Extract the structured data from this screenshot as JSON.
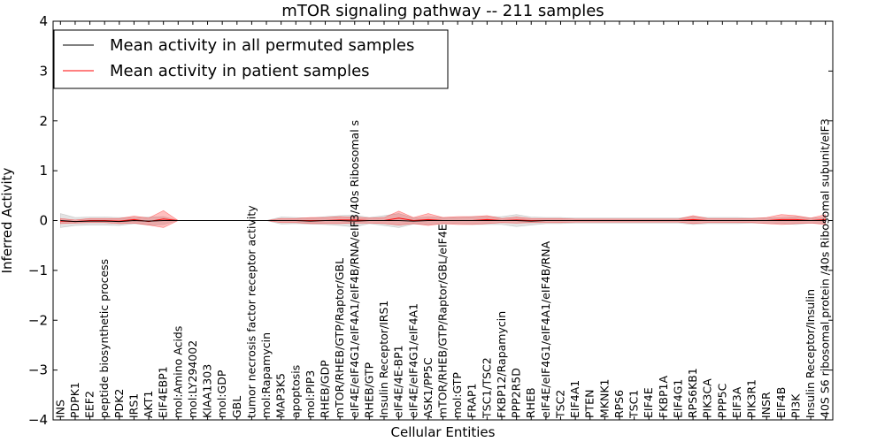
{
  "chart_data": {
    "type": "line",
    "title": "mTOR signaling pathway -- 211 samples",
    "xlabel": "Cellular Entities",
    "ylabel": "Inferred Activity",
    "ylim": [
      -4,
      4
    ],
    "yticks": [
      -4,
      -3,
      -2,
      -1,
      0,
      1,
      2,
      3,
      4
    ],
    "ytick_labels": [
      "−4",
      "−3",
      "−2",
      "−1",
      "0",
      "1",
      "2",
      "3",
      "4"
    ],
    "grid": false,
    "legend_position": "top-left",
    "categories": [
      "INS",
      "PDPK1",
      "EEF2",
      "peptide biosynthetic process",
      "PDK2",
      "IRS1",
      "AKT1",
      "EIF4EBP1",
      "mol:Amino Acids",
      "mol:LY294002",
      "KIAA1303",
      "mol:GDP",
      "GBL",
      "tumor necrosis factor receptor activity",
      "mol:Rapamycin",
      "MAP3K5",
      "apoptosis",
      "mol:PIP3",
      "RHEB/GDP",
      "mTOR/RHEB/GTP/Raptor/GBL",
      "eIF4E/eIF4G1/eIF4A1/eIF4B/RNA/eIF3/40s Ribosomal s",
      "RHEB/GTP",
      "Insulin Receptor/IRS1",
      "eIF4E/4E-BP1",
      "eIF4E/eIF4G1/eIF4A1",
      "ASK1/PP5C",
      "mTOR/RHEB/GTP/Raptor/GBL/eIF4E",
      "mol:GTP",
      "FRAP1",
      "TSC1/TSC2",
      "FKBP12/Rapamycin",
      "PPP2R5D",
      "RHEB",
      "eIF4E/eIF4G1/eIF4A1/eIF4B/RNA",
      "TSC2",
      "EIF4A1",
      "PTEN",
      "MKNK1",
      "RPS6",
      "TSC1",
      "EIF4E",
      "FKBP1A",
      "EIF4G1",
      "RPS6KB1",
      "PIK3CA",
      "PPP5C",
      "EIF3A",
      "PIK3R1",
      "INSR",
      "EIF4B",
      "PI3K",
      "Insulin Receptor/Insulin",
      "40S S6 ribosomal protein /40s Ribosomal subunit/eIF3"
    ],
    "series": [
      {
        "name": "Mean activity in all permuted samples",
        "color": "#000000",
        "values": [
          0.0,
          -0.02,
          -0.01,
          -0.01,
          -0.02,
          0.0,
          -0.01,
          0.0,
          0.0,
          0.0,
          0.0,
          0.0,
          0.0,
          0.0,
          0.0,
          0.0,
          0.0,
          -0.01,
          0.0,
          0.0,
          -0.01,
          0.0,
          0.0,
          0.0,
          -0.01,
          0.0,
          0.0,
          0.0,
          0.0,
          0.0,
          0.0,
          0.0,
          -0.01,
          0.0,
          0.0,
          0.0,
          0.0,
          0.0,
          0.0,
          0.0,
          0.0,
          0.0,
          0.0,
          0.0,
          0.0,
          0.0,
          0.0,
          0.0,
          0.0,
          0.0,
          0.0,
          0.0,
          0.0
        ],
        "band": [
          0.14,
          0.08,
          0.08,
          0.08,
          0.08,
          0.06,
          0.08,
          0.08,
          0.0,
          0.0,
          0.0,
          0.0,
          0.0,
          0.0,
          0.0,
          0.07,
          0.06,
          0.06,
          0.08,
          0.1,
          0.12,
          0.06,
          0.1,
          0.14,
          0.06,
          0.08,
          0.06,
          0.06,
          0.08,
          0.08,
          0.08,
          0.12,
          0.08,
          0.06,
          0.06,
          0.05,
          0.05,
          0.05,
          0.05,
          0.05,
          0.05,
          0.05,
          0.05,
          0.08,
          0.06,
          0.06,
          0.06,
          0.05,
          0.05,
          0.06,
          0.08,
          0.05,
          0.06
        ]
      },
      {
        "name": "Mean activity in patient samples",
        "color": "#ff0000",
        "values": [
          -0.01,
          -0.02,
          0.0,
          0.0,
          -0.01,
          0.02,
          -0.02,
          0.03,
          0.0,
          0.0,
          0.0,
          0.0,
          0.0,
          0.0,
          0.0,
          0.0,
          0.0,
          0.0,
          0.0,
          0.01,
          0.01,
          0.0,
          0.0,
          0.05,
          0.0,
          0.02,
          0.0,
          0.0,
          0.0,
          0.02,
          0.0,
          0.01,
          0.0,
          0.0,
          0.0,
          0.0,
          0.0,
          0.0,
          0.0,
          0.0,
          0.0,
          0.0,
          0.0,
          0.02,
          0.0,
          0.0,
          0.0,
          0.0,
          0.0,
          0.02,
          0.02,
          0.0,
          0.02
        ],
        "band": [
          0.05,
          0.03,
          0.04,
          0.04,
          0.05,
          0.07,
          0.07,
          0.17,
          0.0,
          0.0,
          0.0,
          0.0,
          0.0,
          0.0,
          0.0,
          0.04,
          0.04,
          0.06,
          0.06,
          0.07,
          0.06,
          0.05,
          0.06,
          0.14,
          0.06,
          0.12,
          0.06,
          0.08,
          0.08,
          0.08,
          0.04,
          0.06,
          0.04,
          0.04,
          0.04,
          0.03,
          0.03,
          0.03,
          0.03,
          0.03,
          0.03,
          0.03,
          0.03,
          0.08,
          0.04,
          0.04,
          0.04,
          0.04,
          0.06,
          0.1,
          0.08,
          0.05,
          0.1
        ]
      }
    ]
  }
}
